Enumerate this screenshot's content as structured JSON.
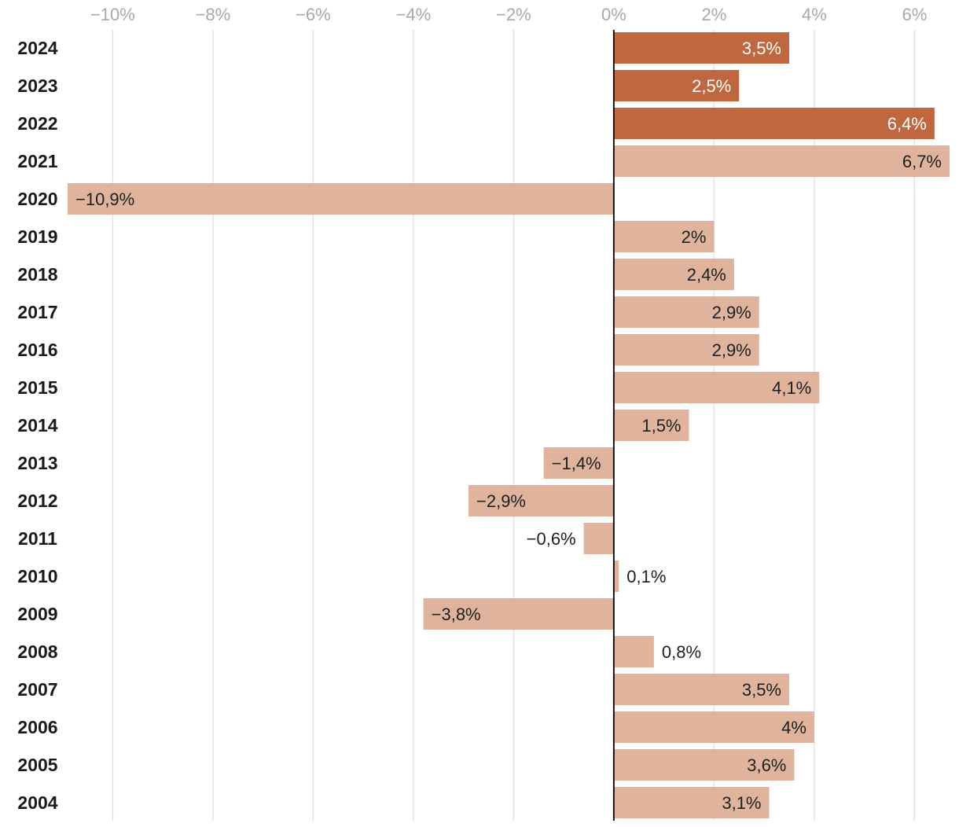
{
  "chart_data": {
    "type": "bar",
    "orientation": "horizontal",
    "xlim": [
      -10.9,
      6.7
    ],
    "ticks": [
      -10,
      -8,
      -6,
      -4,
      -2,
      0,
      2,
      4,
      6
    ],
    "tick_labels": [
      "−10%",
      "−8%",
      "−6%",
      "−4%",
      "−2%",
      "0%",
      "2%",
      "4%",
      "6%"
    ],
    "grid": true,
    "categories": [
      "2024",
      "2023",
      "2022",
      "2021",
      "2020",
      "2019",
      "2018",
      "2017",
      "2016",
      "2015",
      "2014",
      "2013",
      "2012",
      "2011",
      "2010",
      "2009",
      "2008",
      "2007",
      "2006",
      "2005",
      "2004"
    ],
    "values": [
      3.5,
      2.5,
      6.4,
      6.7,
      -10.9,
      2,
      2.4,
      2.9,
      2.9,
      4.1,
      1.5,
      -1.4,
      -2.9,
      -0.6,
      0.1,
      -3.8,
      0.8,
      3.5,
      4,
      3.6,
      3.1
    ],
    "value_labels": [
      "3,5%",
      "2,5%",
      "6,4%",
      "6,7%",
      "−10,9%",
      "2%",
      "2,4%",
      "2,9%",
      "2,9%",
      "4,1%",
      "1,5%",
      "−1,4%",
      "−2,9%",
      "−0,6%",
      "0,1%",
      "−3,8%",
      "0,8%",
      "3,5%",
      "4%",
      "3,6%",
      "3,1%"
    ],
    "highlighted": [
      "2024",
      "2023",
      "2022"
    ],
    "colors": {
      "highlight": "#c0673f",
      "normal": "#e0b39d",
      "grid": "#e3e3e3",
      "axis": "#111111",
      "tick_text": "#a8a8a8",
      "label_dark": "#1f1f1f",
      "label_light": "#ffffff"
    }
  }
}
